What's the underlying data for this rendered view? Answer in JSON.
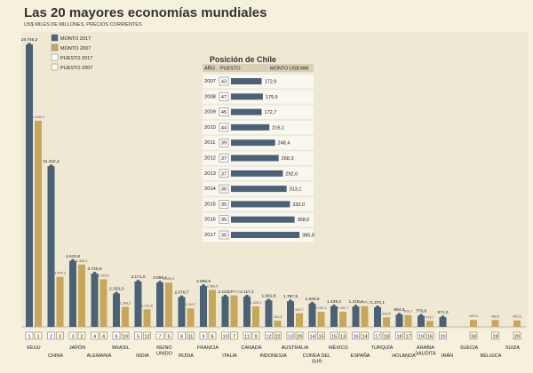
{
  "chart_data": {
    "type": "bar",
    "title": "Las 20 mayores economías mundiales",
    "subtitle": "US$ MILES DE MILLONES, PRECIOS CORRIENTES",
    "legend": [
      "MONTO 2017",
      "MONTO 2007",
      "PUESTO 2017",
      "PUESTO 2007"
    ],
    "colors": {
      "monto2017": "#4a6278",
      "monto2007": "#c8a858",
      "background": "#f6f1dc",
      "panel": "#e8e2cc"
    },
    "ylim": [
      0,
      20000
    ],
    "categories": [
      "EEUU",
      "CHINA",
      "JAPÓN",
      "ALEMANIA",
      "BRASIL",
      "INDIA",
      "REINO UNIDO",
      "RUSIA",
      "FRANCIA",
      "ITALIA",
      "CANADÁ",
      "INDONESIA",
      "AUSTRALIA",
      "COREA DEL SUR",
      "MÉXICO",
      "ESPAÑA",
      "TURQUÍA",
      "HOLANDA",
      "ARABIA SAUDITA",
      "IRÁN",
      "SUECIA",
      "BÉLGICA",
      "SUIZA"
    ],
    "series": [
      {
        "name": "MONTO 2017",
        "values": [
          19746.3,
          11232.2,
          4610.8,
          3725.6,
          2329.3,
          3171.0,
          3098.1,
          2078.7,
          2855.6,
          2123.7,
          2117.1,
          1842.8,
          1787.5,
          1628.8,
          1439.2,
          1418.4,
          1370.1,
          854.6,
          778.8,
          671.0,
          null,
          null,
          null
        ]
      },
      {
        "name": "MONTO 2007",
        "values": [
          14420.2,
          3494.2,
          4356.3,
          3328.6,
          1398.2,
          1223.8,
          3095.8,
          1299.7,
          2586.5,
          2203.2,
          1428.3,
          432.3,
          945.7,
          1049.2,
          1052.7,
          1445.2,
          663.5,
          823.7,
          415.7,
          null,
          483.3,
          480.5,
          450.5
        ]
      },
      {
        "name": "PUESTO 2017",
        "values": [
          1,
          2,
          3,
          4,
          6,
          5,
          7,
          8,
          9,
          10,
          11,
          12,
          13,
          14,
          15,
          16,
          17,
          18,
          19,
          20,
          null,
          null,
          null
        ]
      },
      {
        "name": "PUESTO 2007",
        "values": [
          1,
          3,
          2,
          4,
          10,
          12,
          5,
          11,
          6,
          7,
          9,
          22,
          20,
          15,
          13,
          14,
          18,
          17,
          16,
          null,
          18,
          19,
          20
        ]
      }
    ],
    "value_labels_2017": [
      "19.746,3",
      "11.232,2",
      "4.610,8",
      "3.725,6",
      "2.329,3",
      "3.171,0",
      "3.098,1",
      "2.078,7",
      "2.855,6",
      "2.123,7",
      "2.117,1",
      "1.842,8",
      "1.787,5",
      "1.628,8",
      "1.439,2",
      "1.418,4",
      "1.370,1",
      "854,6",
      "778,8",
      "671,0",
      "",
      "",
      ""
    ],
    "value_labels_2007": [
      "14.420,2",
      "3.494,2",
      "4.356,3",
      "3.328,6",
      "1.398,2",
      "1.223,8",
      "3.095,8",
      "1.299,7",
      "2.586,5",
      "2.203,2",
      "1.428,3",
      "432,3",
      "945,7",
      "1.049,2",
      "1.052,7",
      "1.445,2",
      "663,5",
      "823,7",
      "415,7",
      "",
      "483,3",
      "480,5",
      "450,5"
    ],
    "inset": {
      "title": "Posición de Chile",
      "headers": [
        "AÑO",
        "PUESTO",
        "MONTO US$ MM"
      ],
      "years": [
        2007,
        2008,
        2009,
        2010,
        2011,
        2012,
        2013,
        2014,
        2015,
        2016,
        2017
      ],
      "positions": [
        43,
        47,
        45,
        44,
        39,
        37,
        37,
        36,
        35,
        35,
        35
      ],
      "amounts": [
        172.9,
        179.5,
        172.7,
        216.1,
        248.4,
        268.3,
        292.0,
        313.1,
        332.0,
        358.0,
        385.8
      ],
      "amount_labels": [
        "172,9",
        "179,5",
        "172,7",
        "216,1",
        "248,4",
        "268,3",
        "292,0",
        "313,1",
        "332,0",
        "358,0",
        "385,8"
      ],
      "xlim": [
        0,
        400
      ]
    }
  }
}
